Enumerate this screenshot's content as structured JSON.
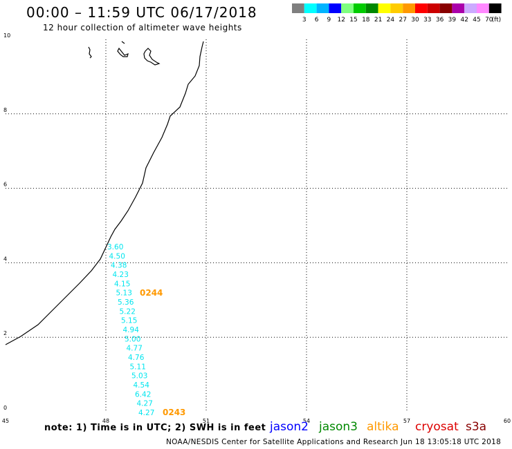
{
  "header": {
    "title": "00:00 – 11:59 UTC 06/17/2018",
    "subtitle": "12 hour collection of altimeter wave heights"
  },
  "color_scale": {
    "unit": "(ft)",
    "bins": [
      {
        "label": "3",
        "color": "#7f7f7f"
      },
      {
        "label": "6",
        "color": "#00ffff"
      },
      {
        "label": "9",
        "color": "#00b4ff"
      },
      {
        "label": "12",
        "color": "#0000ff"
      },
      {
        "label": "15",
        "color": "#7fff7f"
      },
      {
        "label": "18",
        "color": "#00cc00"
      },
      {
        "label": "21",
        "color": "#008800"
      },
      {
        "label": "24",
        "color": "#ffff00"
      },
      {
        "label": "27",
        "color": "#ffcc00"
      },
      {
        "label": "30",
        "color": "#ff9900"
      },
      {
        "label": "33",
        "color": "#ff0000"
      },
      {
        "label": "36",
        "color": "#cc0000"
      },
      {
        "label": "39",
        "color": "#880000"
      },
      {
        "label": "42",
        "color": "#aa00aa"
      },
      {
        "label": "45",
        "color": "#ccaaff"
      },
      {
        "label": "70",
        "color": "#ff88ff"
      },
      {
        "label": "",
        "color": "#000000"
      }
    ]
  },
  "map": {
    "lon_range": [
      45,
      60
    ],
    "lat_range": [
      0,
      10
    ],
    "x_ticks": [
      "45",
      "48",
      "51",
      "54",
      "57",
      "60"
    ],
    "y_ticks": [
      "0",
      "2",
      "4",
      "6",
      "8",
      "10"
    ],
    "observations": {
      "satellite": "s3a",
      "color": "#00e5ee",
      "values": [
        "3.60",
        "4.50",
        "4.38",
        "4.23",
        "4.15",
        "5.13",
        "5.36",
        "5.22",
        "5.15",
        "4.94",
        "5.00",
        "4.77",
        "4.76",
        "5.11",
        "5.03",
        "4.54",
        "6.42",
        "4.27",
        "4.27"
      ]
    },
    "time_labels": [
      {
        "text": "0244",
        "color": "#ff9900"
      },
      {
        "text": "0243",
        "color": "#ff9900"
      }
    ]
  },
  "footer": {
    "note": "note: 1) Time is in UTC; 2) SWH is in feet",
    "legend": [
      {
        "name": "jason2",
        "color": "#0000ff"
      },
      {
        "name": "jason3",
        "color": "#008800"
      },
      {
        "name": "altika",
        "color": "#ff9900"
      },
      {
        "name": "cryosat",
        "color": "#dd0000"
      },
      {
        "name": "s3a",
        "color": "#880000"
      }
    ],
    "credit": "NOAA/NESDIS Center for Satellite Applications and Research   Jun 18 13:05:18 UTC 2018"
  }
}
